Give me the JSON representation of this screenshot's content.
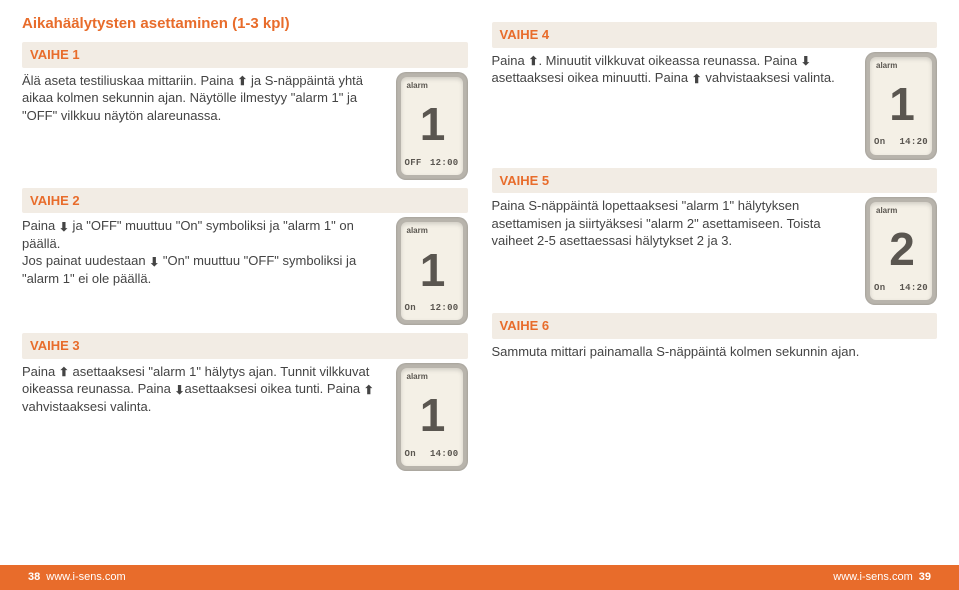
{
  "title": "Aikahäälytysten asettaminen (1-3 kpl)",
  "footer": {
    "url": "www.i-sens.com",
    "page_left": "38",
    "page_right": "39"
  },
  "devices": {
    "alarm_label": "alarm",
    "d1": {
      "num": "1",
      "status": "OFF",
      "time": "12:00"
    },
    "d2": {
      "num": "1",
      "status": "On",
      "time": "12:00"
    },
    "d3": {
      "num": "1",
      "status": "On",
      "time": "14:00"
    },
    "d4": {
      "num": "1",
      "status": "On",
      "time": "14:20"
    },
    "d5": {
      "num": "2",
      "status": "On",
      "time": "14:20"
    }
  },
  "steps": {
    "s1": {
      "label": "VAIHE 1",
      "t1": "Älä aseta testiliuskaa mittariin. Paina ",
      "t2": " ja S-näppäintä yhtä aikaa kolmen sekunnin ajan. Näytölle ilmestyy \"alarm 1\" ja \"OFF\" vilkkuu näytön alareunassa."
    },
    "s2": {
      "label": "VAIHE 2",
      "t1": "Paina ",
      "t2": " ja \"OFF\" muuttuu \"On\" symboliksi ja \"alarm 1\" on päällä.",
      "t3": "Jos painat uudestaan ",
      "t4": " \"On\" muuttuu \"OFF\" symboliksi ja \"alarm 1\" ei ole päällä."
    },
    "s3": {
      "label": "VAIHE 3",
      "t1": "Paina ",
      "t2": " asettaaksesi \"alarm 1\" hälytys ajan. Tunnit vilkkuvat oikeassa reunassa. Paina ",
      "t3": "asettaaksesi oikea tunti. Paina ",
      "t4": " vahvistaaksesi valinta."
    },
    "s4": {
      "label": "VAIHE 4",
      "t1": "Paina ",
      "t2": ". Minuutit vilkkuvat oikeassa reunassa. Paina ",
      "t3": " asettaaksesi oikea minuutti. Paina ",
      "t4": " vahvistaaksesi valinta."
    },
    "s5": {
      "label": "VAIHE 5",
      "t": "Paina S-näppäintä lopettaaksesi \"alarm 1\" hälytyksen asettamisen ja siirtyäksesi \"alarm 2\" asettamiseen. Toista vaiheet 2-5 asettaessasi hälytykset 2 ja 3."
    },
    "s6": {
      "label": "VAIHE 6",
      "t": "Sammuta mittari painamalla S-näppäintä kolmen sekunnin ajan."
    }
  }
}
